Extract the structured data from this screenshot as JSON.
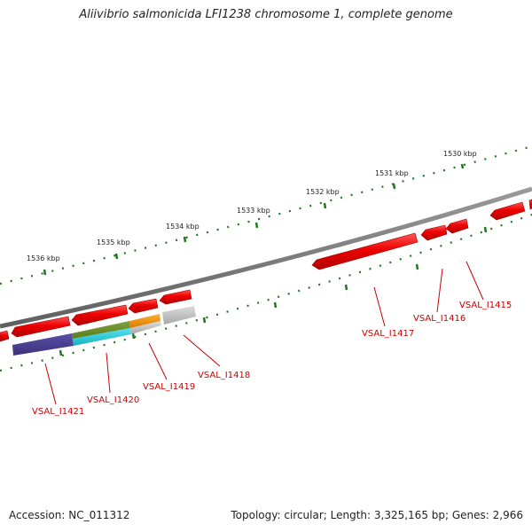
{
  "title": "Aliivibrio salmonicida LFI1238 chromosome 1, complete genome",
  "footer": {
    "accession": "Accession: NC_011312",
    "summary": "Topology: circular; Length: 3,325,165 bp; Genes: 2,966"
  },
  "scale": {
    "unit": "kbp",
    "ticks": [
      {
        "kbp": 1530,
        "label": "1530 kbp"
      },
      {
        "kbp": 1531,
        "label": "1531 kbp"
      },
      {
        "kbp": 1532,
        "label": "1532 kbp"
      },
      {
        "kbp": 1533,
        "label": "1533 kbp"
      },
      {
        "kbp": 1534,
        "label": "1534 kbp"
      },
      {
        "kbp": 1535,
        "label": "1535 kbp"
      },
      {
        "kbp": 1536,
        "label": "1536 kbp"
      }
    ]
  },
  "genes": [
    {
      "label": "VSAL_I1415",
      "color": "#e00000"
    },
    {
      "label": "VSAL_I1416",
      "color": "#e00000"
    },
    {
      "label": "VSAL_I1417",
      "color": "#e00000"
    },
    {
      "label": "VSAL_I1418",
      "color": "#e00000"
    },
    {
      "label": "VSAL_I1419",
      "color": "#e00000"
    },
    {
      "label": "VSAL_I1420",
      "color": "#e00000"
    },
    {
      "label": "VSAL_I1421",
      "color": "#e00000"
    }
  ],
  "colors": {
    "backbone": "#7a7a7a",
    "tick": "#1e7a1e",
    "gene_forward": "#e00000",
    "label": "#cc0000",
    "category_purple": "#4a3f8f",
    "category_olive": "#6a8a2a",
    "category_cyan": "#22c7d6",
    "category_orange": "#f09000",
    "category_gray": "#b8b8b8"
  }
}
